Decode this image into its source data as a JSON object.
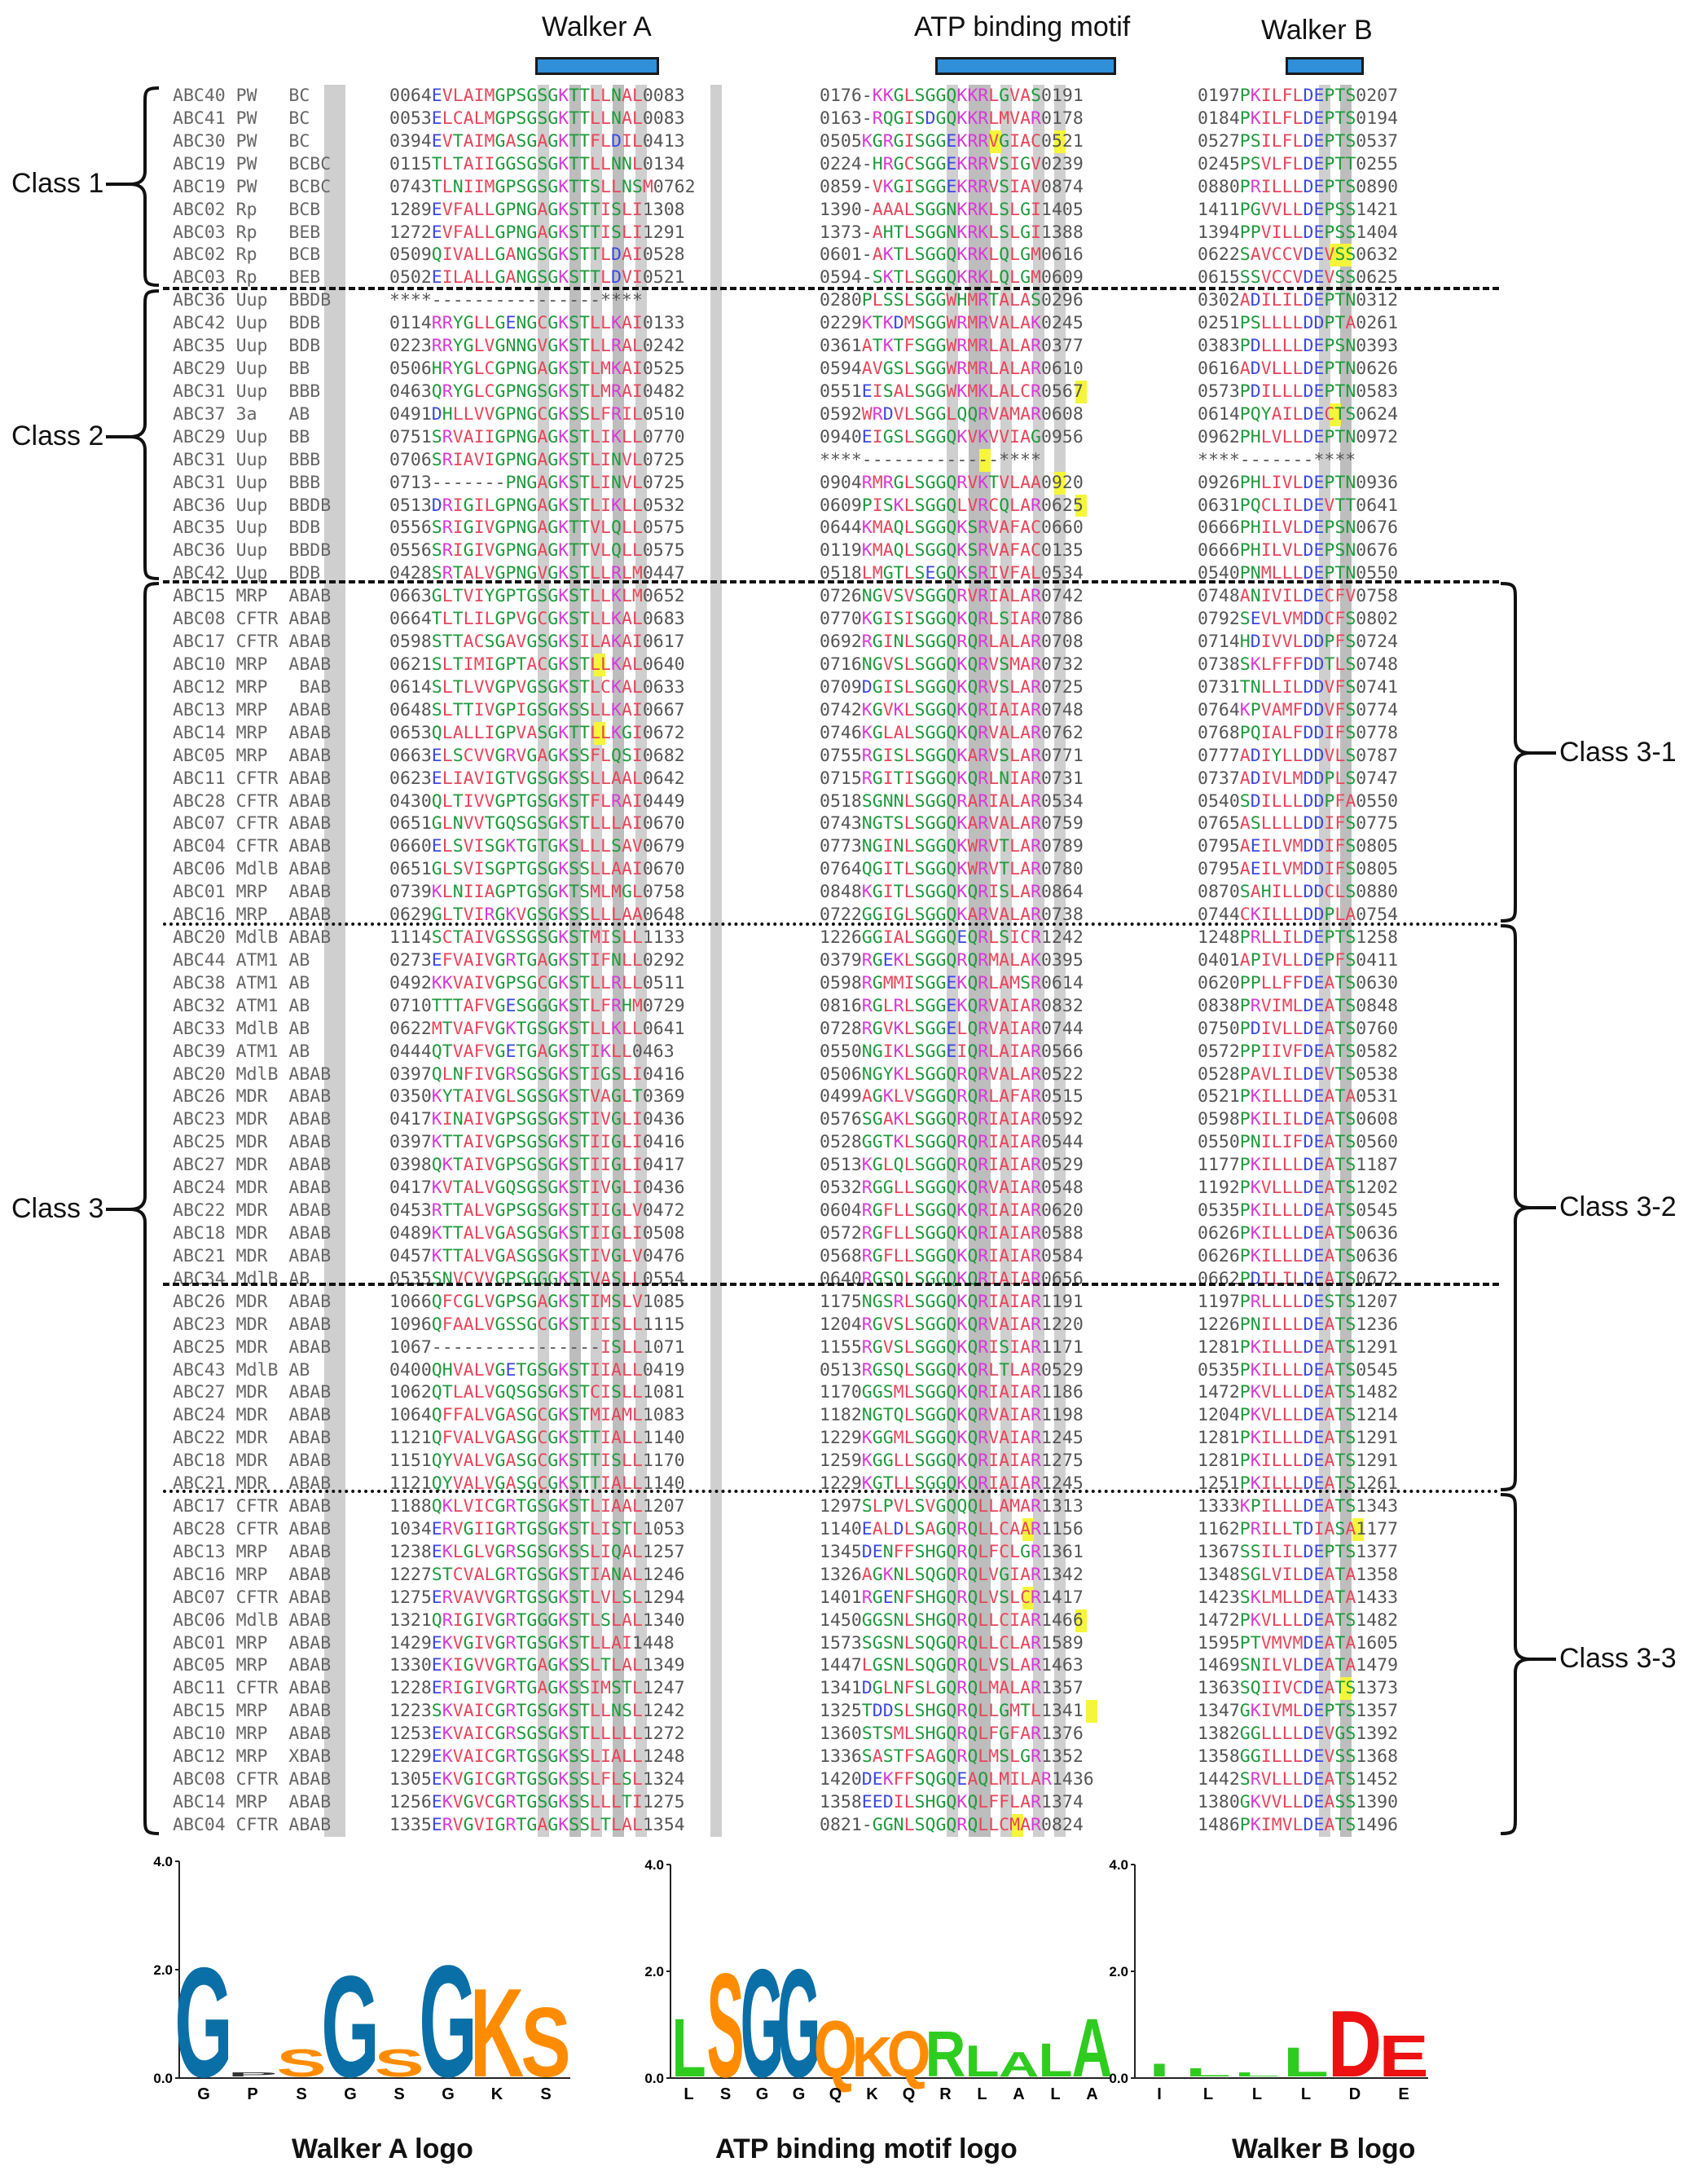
{
  "motif_headers": [
    {
      "label": "Walker A"
    },
    {
      "label": "ATP binding motif"
    },
    {
      "label": "Walker B"
    }
  ],
  "class_labels": {
    "left": [
      "Class 1",
      "Class 2",
      "Class 3"
    ],
    "right": [
      "Class 3-1",
      "Class 3-2",
      "Class 3-3"
    ]
  },
  "colors": {
    "motif_bar": "#2f8fd8",
    "shade": "#cfcfcf",
    "highlight": "#f5f53b",
    "residue_hydrophobic": "#e8455a",
    "residue_polar": "#1e9a3c",
    "residue_basic": "#d63ad6",
    "residue_acidic": "#3b48e0",
    "logo_blue": "#0a6fa6",
    "logo_orange": "#ff8c00",
    "logo_green": "#2ecc1f",
    "logo_red": "#ee1111"
  },
  "sequences": [
    {
      "name": "ABC40 PW   BC  ",
      "wa": "0064EVLAIMGPSGSGKTTLLNAL0083",
      "atp": "0176-KKGLSGGQKKRLGVAS0191",
      "wb": "0197PKILFLDEPTS0207"
    },
    {
      "name": "ABC41 PW   BC  ",
      "wa": "0053ELCALMGPSGSGKTTLLNAL0083",
      "atp": "0163-RQGISDGQKKRLMVAR0178",
      "wb": "0184PKILFLDEPTS0194"
    },
    {
      "name": "ABC30 PW   BC  ",
      "wa": "0394EVTAIMGASGAGKTTFLDIL0413",
      "atp": "0505KGRGISGGEKRRVGIAC0521",
      "wb": "0527PSILFLDEPTS0537"
    },
    {
      "name": "ABC19 PW   BCBC",
      "wa": "0115TLTAIIGGSGSGKTTLLNNL0134",
      "atp": "0224-HRGCSGGEKRRVSIGV0239",
      "wb": "0245PSVLFLDEPTT0255"
    },
    {
      "name": "ABC19 PW   BCBC",
      "wa": "0743TLNIIMGPSGSGKTTSLLNSM0762",
      "atp": "0859-VKGISGGEKRRVSIAV0874",
      "wb": "0880PRILLLDEPTS0890"
    },
    {
      "name": "ABC02 Rp   BCB ",
      "wa": "1289EVFALLGPNGAGKSTTISLI1308",
      "atp": "1390-AAALSGGNKRKLSLGI1405",
      "wb": "1411PGVVLLDEPSS1421"
    },
    {
      "name": "ABC03 Rp   BEB ",
      "wa": "1272EVFALLGPNGAGKSTTISLI1291",
      "atp": "1373-AHTLSGGNKRKLSLGI1388",
      "wb": "1394PPVILLDEPSS1404"
    },
    {
      "name": "ABC02 Rp   BCB ",
      "wa": "0509QIVALLGANGSGKSTTLDAI0528",
      "atp": "0601-AKTLSGGQKRKLQLGM0616",
      "wb": "0622SAVCCVDEVSS0632"
    },
    {
      "name": "ABC03 Rp   BEB ",
      "wa": "0502EILALLGANGSGKSTTLDVI0521",
      "atp": "0594-SKTLSGGQKRKLQLGM0609",
      "wb": "0615SSVCCVDEVSS0625"
    },
    {
      "name": "ABC36 Uup  BBDB",
      "wa": "****----------------****",
      "atp": "0280PLSSLSGGWHMRTALAS0296",
      "wb": "0302ADILILDEPTN0312"
    },
    {
      "name": "ABC42 Uup  BDB ",
      "wa": "0114RRYGLLGENGCGKSTLLKAI0133",
      "atp": "0229KTKDMSGGWRMRVALAK0245",
      "wb": "0251PSLLLLDDPTA0261"
    },
    {
      "name": "ABC35 Uup  BDB ",
      "wa": "0223RRYGLVGNNGVGKSTLLRAL0242",
      "atp": "0361ATKTFSGGWRMRLALAR0377",
      "wb": "0383PDLLLLDEPSN0393"
    },
    {
      "name": "ABC29 Uup  BB  ",
      "wa": "0506HRYGLCGPNGAGKSTLMKAI0525",
      "atp": "0594AVGSLSGGWRMRLALAR0610",
      "wb": "0616ADVLLLDEPTN0626"
    },
    {
      "name": "ABC31 Uup  BBB ",
      "wa": "0463QRYGLCGPNGSGKSTLMRAI0482",
      "atp": "0551EISALSGGWKMKLALCR0567",
      "wb": "0573PDILLLDEPTN0583"
    },
    {
      "name": "ABC37 3a   AB  ",
      "wa": "0491DHLLVVGPNGCGKSSLFRIL0510",
      "atp": "0592WRDVLSGGLQQRVAMAR0608",
      "wb": "0614PQYAILDECTS0624"
    },
    {
      "name": "ABC29 Uup  BB  ",
      "wa": "0751SRVAIIGPNGAGKSTLIKLL0770",
      "atp": "0940EIGSLSGGQKVKVVIAG0956",
      "wb": "0962PHLVLLDEPTN0972"
    },
    {
      "name": "ABC31 Uup  BBB ",
      "wa": "0706SRIAVIGPNGAGKSTLINVL0725",
      "atp": "****-------------****",
      "wb": "****-------****"
    },
    {
      "name": "ABC31 Uup  BBB ",
      "wa": "0713-------PNGAGKSTLINVL0725",
      "atp": "0904RMRGLSGGQRVKTVLAA0920",
      "wb": "0926PHLIVLDEPTN0936"
    },
    {
      "name": "ABC36 Uup  BBDB",
      "wa": "0513DRIGILGPNGAGKSTLIKLL0532",
      "atp": "0609PISKLSGGQLVRCQLAR0625",
      "wb": "0631PQCLILDEVTT0641"
    },
    {
      "name": "ABC35 Uup  BDB ",
      "wa": "0556SRIGIVGPNGAGKTTVLQLL0575",
      "atp": "0644KMAQLSGGQKSRVAFAC0660",
      "wb": "0666PHILVLDEPSN0676"
    },
    {
      "name": "ABC36 Uup  BBDB",
      "wa": "0556SRIGIVGPNGAGKTTVLQLL0575",
      "atp": "0119KMAQLSGGQKSRVAFAC0135",
      "wb": "0666PHILVLDEPSN0676"
    },
    {
      "name": "ABC42 Uup  BDB ",
      "wa": "0428SRTALVGPNGVGKSTLLRLM0447",
      "atp": "0518LMGTLSEGQKSRIVFAL0534",
      "wb": "0540PNMLLLDEPTN0550"
    },
    {
      "name": "ABC15 MRP  ABAB",
      "wa": "0663GLTVIYGPTGSGKSTLLKLM0652",
      "atp": "0726NGVSVSGGQRVRIALAR0742",
      "wb": "0748ANIVILDECFV0758"
    },
    {
      "name": "ABC08 CFTR ABAB",
      "wa": "0664TLTLILGPVGCGKSTLLKAL0683",
      "atp": "0770KGISISGGQKQRLSIAR0786",
      "wb": "0792SEVLVMDDCFS0802"
    },
    {
      "name": "ABC17 CFTR ABAB",
      "wa": "0598STTACSGAVGSGKSILAKAI0617",
      "atp": "0692RGINLSGGQRQRLALAR0708",
      "wb": "0714HDIVVLDDPFS0724"
    },
    {
      "name": "ABC10 MRP  ABAB",
      "wa": "0621SLTIMIGPTACGKSTLLKAL0640",
      "atp": "0716NGVSLSGGQKQRVSMAR0732",
      "wb": "0738SKLFFFDDTLS0748"
    },
    {
      "name": "ABC12 MRP   BAB",
      "wa": "0614SLTLVVGPVGSGKSTLCKAL0633",
      "atp": "0709DGISLSGGQKQRVSLAR0725",
      "wb": "0731TNLLILDDVFS0741"
    },
    {
      "name": "ABC13 MRP  ABAB",
      "wa": "0648SLTTIVGPIGSGKSSLLKAI0667",
      "atp": "0742KGVKLSGGQKQRIAIAR0748",
      "wb": "0764KPVAMFDDVFS0774"
    },
    {
      "name": "ABC14 MRP  ABAB",
      "wa": "0653QLALLIGPVASGKTTLLKGI0672",
      "atp": "0746KGLALSGGQKQRVALAR0762",
      "wb": "0768PQIALFDDIFS0778"
    },
    {
      "name": "ABC05 MRP  ABAB",
      "wa": "0663ELSCVVGRVGAGKSSFLQSI0682",
      "atp": "0755RGISLSGGQKARVSLAR0771",
      "wb": "0777ADIYLLDDVLS0787"
    },
    {
      "name": "ABC11 CFTR ABAB",
      "wa": "0623ELIAVIGTVGSGKSSLLAAL0642",
      "atp": "0715RGITISGGQKQRLNIAR0731",
      "wb": "0737ADIVLMDDPLS0747"
    },
    {
      "name": "ABC28 CFTR ABAB",
      "wa": "0430QLTIVVGPTGSGKSTFLRAI0449",
      "atp": "0518SGNNLSGGQRARIALAR0534",
      "wb": "0540SDILLLDDPFA0550"
    },
    {
      "name": "ABC07 CFTR ABAB",
      "wa": "0651GLNVVTGQSGSGKSTLLLAI0670",
      "atp": "0743NGTSLSGGQKARVALAR0759",
      "wb": "0765ASLLLLDDIFS0775"
    },
    {
      "name": "ABC04 CFTR ABAB",
      "wa": "0660ELSVISGKTGTGKSLLLSAV0679",
      "atp": "0773NGINLSGGQKWRVTLAR0789",
      "wb": "0795AEILVMDDIFS0805"
    },
    {
      "name": "ABC06 MdlB ABAB",
      "wa": "0651GLSVISGPTGSGKSSLLAAI0670",
      "atp": "0764QGITLSGGQKWRVTLAR0780",
      "wb": "0795AEILVMDDIFS0805"
    },
    {
      "name": "ABC01 MRP  ABAB",
      "wa": "0739KLNIIAGPTGSGKTSMLMGL0758",
      "atp": "0848KGITLSGGQKQRISLAR0864",
      "wb": "0870SAHILLDDCLS0880"
    },
    {
      "name": "ABC16 MRP  ABAB",
      "wa": "0629GLTVIRGKVGSGKSSLLLAA0648",
      "atp": "0722GGIGLSGGQKARVALAR0738",
      "wb": "0744CKILLLDDPLA0754"
    },
    {
      "name": "ABC20 MdlB ABAB",
      "wa": "1114SCTAIVGSSGSGKSTMISLL1133",
      "atp": "1226GGIALSGGQEQRLSICR1242",
      "wb": "1248PRLLILDEPTS1258"
    },
    {
      "name": "ABC44 ATM1 AB  ",
      "wa": "0273EFVAIVGRTGAGKSTIFNLL0292",
      "atp": "0379RGEKLSGGQRQRMALAK0395",
      "wb": "0401APIVLLDEPFS0411"
    },
    {
      "name": "ABC38 ATM1 AB  ",
      "wa": "0492KKVAIVGPSGCGKSTLLRLL0511",
      "atp": "0598RGMMISGGEKQRLAMSR0614",
      "wb": "0620PPLLFFDEATS0630"
    },
    {
      "name": "ABC32 ATM1 AB  ",
      "wa": "0710TTTAFVGESGGGKSTLFRHM0729",
      "atp": "0816RGLRLSGGEKQRVAIAR0832",
      "wb": "0838PRVIMLDEATS0848"
    },
    {
      "name": "ABC33 MdlB AB  ",
      "wa": "0622MTVAFVGKTGSGKSTLLKLL0641",
      "atp": "0728RGVKLSGGELQRVAIAR0744",
      "wb": "0750PDIVLLDEATS0760"
    },
    {
      "name": "ABC39 ATM1 AB  ",
      "wa": "0444QTVAFVGETGAGKSTIKLL0463",
      "atp": "0550NGIKLSGGEIQRLAIAR0566",
      "wb": "0572PPIIVFDEATS0582"
    },
    {
      "name": "ABC20 MdlB ABAB",
      "wa": "0397QLNFIVGRSGSGKSTIGSLI0416",
      "atp": "0506NGYKLSGGQRQRVALAR0522",
      "wb": "0528PAVLILDEVTS0538"
    },
    {
      "name": "ABC26 MDR  ABAB",
      "wa": "0350KYTAIVGLSGSGKSTVAGLT0369",
      "atp": "0499AGKLVSGGQRQRLAFAR0515",
      "wb": "0521PKILLLDEATA0531"
    },
    {
      "name": "ABC23 MDR  ABAB",
      "wa": "0417KINAIVGPSGSGKSTIVGLI0436",
      "atp": "0576SGAKLSGGQRQRIAIAR0592",
      "wb": "0598PKILILDEATS0608"
    },
    {
      "name": "ABC25 MDR  ABAB",
      "wa": "0397KTTAIVGPSGSGKSTIIGLI0416",
      "atp": "0528GGTKLSGGQRQRIAIAR0544",
      "wb": "0550PNILIFDEATS0560"
    },
    {
      "name": "ABC27 MDR  ABAB",
      "wa": "0398QKTAIVGPSGSGKSTIIGLI0417",
      "atp": "0513KGLQLSGGQRQRIAIAR0529",
      "wb": "1177PKILLLDEATS1187"
    },
    {
      "name": "ABC24 MDR  ABAB",
      "wa": "0417KVTALVGQSGSGKSTIVGLI0436",
      "atp": "0532RGGLLSGGQKQRVAIAR0548",
      "wb": "1192PKVLLLDEATS1202"
    },
    {
      "name": "ABC22 MDR  ABAB",
      "wa": "0453RTTALVGPSGSGKSTIIGLV0472",
      "atp": "0604RGFLLSGGQKQRIAIAR0620",
      "wb": "0535PKILLLDEATS0545"
    },
    {
      "name": "ABC18 MDR  ABAB",
      "wa": "0489KTTALVGASGSGKSTIIGLI0508",
      "atp": "0572RGFLLSGGQKQRIAIAR0588",
      "wb": "0626PKILLLDEATS0636"
    },
    {
      "name": "ABC21 MDR  ABAB",
      "wa": "0457KTTALVGASGSGKSTIVGLV0476",
      "atp": "0568RGFLLSGGQKQRIAIAR0584",
      "wb": "0626PKILLLDEATS0636"
    },
    {
      "name": "ABC34 MdlB AB  ",
      "wa": "0535SNVCVVGPSGGGKSTVASLL0554",
      "atp": "0640RGSQLSGGQKQRIAIAR0656",
      "wb": "0662PDILILDEATS0672"
    },
    {
      "name": "ABC26 MDR  ABAB",
      "wa": "1066QFCGLVGPSGAGKSTIMSLV1085",
      "atp": "1175NGSRLSGGQKQRIAIAR1191",
      "wb": "1197PRLLLLDESTS1207"
    },
    {
      "name": "ABC23 MDR  ABAB",
      "wa": "1096QFAALVGSSGCGKSTIISLL1115",
      "atp": "1204RGVSLSGGQKQRVAIAR1220",
      "wb": "1226PNILLLDEATS1236"
    },
    {
      "name": "ABC25 MDR  ABAB",
      "wa": "1067----------------ISLL1071",
      "atp": "1155RGVSLSGGQKQRISIAR1171",
      "wb": "1281PKILLLDEATS1291"
    },
    {
      "name": "ABC43 MdlB AB  ",
      "wa": "0400QHVALVGETGSGKSTIIALL0419",
      "atp": "0513RGSQLSGGQKQRLTLAR0529",
      "wb": "0535PKILLLDEATS0545"
    },
    {
      "name": "ABC27 MDR  ABAB",
      "wa": "1062QTLALVGQSGSGKSTCISLL1081",
      "atp": "1170GGSMLSGGQKQRIAIAR1186",
      "wb": "1472PKVLLLDEATS1482"
    },
    {
      "name": "ABC24 MDR  ABAB",
      "wa": "1064QFFALVGASGCGKSTMIAML1083",
      "atp": "1182NGTQLSGGQKQRVAIAR1198",
      "wb": "1204PKVLLLDEATS1214"
    },
    {
      "name": "ABC22 MDR  ABAB",
      "wa": "1121QFVALVGASGCGKSTTIALL1140",
      "atp": "1229KGGMLSGGQKQRVAIAR1245",
      "wb": "1281PKILLLDEATS1291"
    },
    {
      "name": "ABC18 MDR  ABAB",
      "wa": "1151QYVALVGASGCGKSTTISLL1170",
      "atp": "1259KGGLLSGGQKQRIAIAR1275",
      "wb": "1281PKILLLDEATS1291"
    },
    {
      "name": "ABC21 MDR  ABAB",
      "wa": "1121QYVALVGASGCGKSTTIALL1140",
      "atp": "1229KGTLLSGGQKQRIAIAR1245",
      "wb": "1251PKILLLDEATS1261"
    },
    {
      "name": "ABC17 CFTR ABAB",
      "wa": "1188QKLVICGRTGSGKSTLIAAL1207",
      "atp": "1297SLPVLSVGQQQLLAMAR1313",
      "wb": "1333KPILLLDEATS1343"
    },
    {
      "name": "ABC28 CFTR ABAB",
      "wa": "1034ERVGIIGRTGSGKSTLISTL1053",
      "atp": "1140EALDLSAGQRQLLCAAR1156",
      "wb": "1162PRILLTDIASA1177"
    },
    {
      "name": "ABC13 MRP  ABAB",
      "wa": "1238EKLGLVGRSGSGKSSLIQAL1257",
      "atp": "1345DENFFSHGQRQLFCLGR1361",
      "wb": "1367SSILILDEPTS1377"
    },
    {
      "name": "ABC16 MRP  ABAB",
      "wa": "1227STCVALGRTGSGKSTIANAL1246",
      "atp": "1326AGKNLSQGQRQLVGIAR1342",
      "wb": "1348SGLVILDEATA1358"
    },
    {
      "name": "ABC07 CFTR ABAB",
      "wa": "1275ERVAVVGRTGSGKSTLVLSL1294",
      "atp": "1401RGENFSHGQRQLVSLCR1417",
      "wb": "1423SKLMLLDEATA1433"
    },
    {
      "name": "ABC06 MdlB ABAB",
      "wa": "1321QRIGIVGRTGGGKSTLSLAL1340",
      "atp": "1450GGSNLSHGQRQLLCIAR1466",
      "wb": "1472PKVLLLDEATS1482"
    },
    {
      "name": "ABC01 MRP  ABAB",
      "wa": "1429EKVGIVGRTGSGKSTLLAI1448",
      "atp": "1573SGSNLSQGQRQLLCLAR1589",
      "wb": "1595PTVMVMDEATA1605"
    },
    {
      "name": "ABC05 MRP  ABAB",
      "wa": "1330EKIGVVGRTGAGKSSLTLAL1349",
      "atp": "1447LGSNLSQGQRQLVSLAR1463",
      "wb": "1469SNILVLDEATA1479"
    },
    {
      "name": "ABC11 CFTR ABAB",
      "wa": "1228ERIGIVGRTGAGKSSIMSTL1247",
      "atp": "1341DGLNFSLGQRQLMALAR1357",
      "wb": "1363SQIIVCDEATS1373"
    },
    {
      "name": "ABC15 MRP  ABAB",
      "wa": "1223SKVAICGRTGSGKSTLLNSL1242",
      "atp": "1325TDDSLSHGQRQLLGMTL1341",
      "wb": "1347GKIVMLDEPTS1357"
    },
    {
      "name": "ABC10 MRP  ABAB",
      "wa": "1253EKVAICGRSGSGKSTLLLLL1272",
      "atp": "1360STSMLSHGQRQLFGFAR1376",
      "wb": "1382GGLLLLDEVGS1392"
    },
    {
      "name": "ABC12 MRP  XBAB",
      "wa": "1229EKVAICGRTGSGKSSLIALL1248",
      "atp": "1336SASTFSAGQRQLMSLGR1352",
      "wb": "1358GGILLLDEVSS1368"
    },
    {
      "name": "ABC08 CFTR ABAB",
      "wa": "1305EKVGICGRTGSGKSSLFLSL1324",
      "atp": "1420DEKFFSQGQEAQLMILAR1436",
      "wb": "1442SRVLLLDEATS1452"
    },
    {
      "name": "ABC14 MRP  ABAB",
      "wa": "1256EKVGVCGRTGSGKSSLLLTI1275",
      "atp": "1358EEDILSHGQKQLFFLAR1374",
      "wb": "1380GKVVLLDEASS1390"
    },
    {
      "name": "ABC04 CFTR ABAB",
      "wa": "1335ERVGVIGRTGAGKSSLTLAL1354",
      "atp": "0821-GGNLSQGQRQLLCMAR0824",
      "wb": "1486PKIMVLDEATS1496"
    }
  ],
  "logos": [
    {
      "title": "Walker A logo",
      "y_max": "4.0",
      "y_mid": "2.0",
      "y_min": "0.0",
      "positions": [
        "G",
        "P",
        "S",
        "G",
        "S",
        "G",
        "K",
        "S"
      ]
    },
    {
      "title": "ATP binding motif logo",
      "y_max": "4.0",
      "y_mid": "2.0",
      "y_min": "0.0",
      "positions": [
        "L",
        "S",
        "G",
        "G",
        "Q",
        "K",
        "Q",
        "R",
        "L",
        "A",
        "L",
        "A"
      ]
    },
    {
      "title": "Walker B logo",
      "y_max": "4.0",
      "y_mid": "2.0",
      "y_min": "0.0",
      "positions": [
        "I",
        "L",
        "L",
        "L",
        "D",
        "E"
      ]
    }
  ]
}
